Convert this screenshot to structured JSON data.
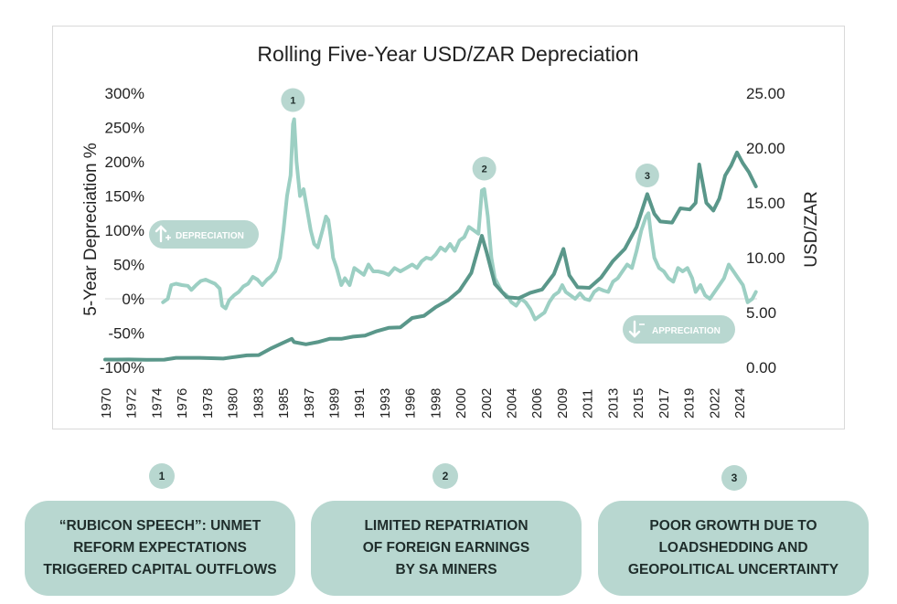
{
  "chart_data": {
    "type": "line",
    "title": "Rolling Five-Year USD/ZAR Depreciation",
    "ylabel": "5-Year Depreciation %",
    "y2label": "USD/ZAR",
    "ylim": [
      -100,
      300
    ],
    "y2lim": [
      0,
      25
    ],
    "y_ticks": [
      "300%",
      "250%",
      "200%",
      "150%",
      "100%",
      "50%",
      "0%",
      "-50%",
      "-100%"
    ],
    "y2_ticks": [
      "25.00",
      "20.00",
      "15.00",
      "10.00",
      "5.00",
      "0.00"
    ],
    "x_ticks": [
      "1970",
      "1972",
      "1974",
      "1976",
      "1978",
      "1980",
      "1983",
      "1985",
      "1987",
      "1989",
      "1991",
      "1993",
      "1996",
      "1998",
      "2000",
      "2002",
      "2004",
      "2006",
      "2009",
      "2011",
      "2013",
      "2015",
      "2017",
      "2019",
      "2022",
      "2024"
    ],
    "series": [
      {
        "name": "5-Year Depreciation %",
        "axis": "left",
        "color": "#9ccfc3",
        "points": [
          [
            1974.9,
            -5
          ],
          [
            1975.3,
            0
          ],
          [
            1975.6,
            20
          ],
          [
            1976.0,
            22
          ],
          [
            1976.5,
            20
          ],
          [
            1977.0,
            19
          ],
          [
            1977.3,
            13
          ],
          [
            1977.7,
            20
          ],
          [
            1978.1,
            26
          ],
          [
            1978.5,
            28
          ],
          [
            1978.9,
            25
          ],
          [
            1979.3,
            22
          ],
          [
            1979.7,
            15
          ],
          [
            1979.9,
            -10
          ],
          [
            1980.2,
            -14
          ],
          [
            1980.5,
            -2
          ],
          [
            1980.9,
            5
          ],
          [
            1981.3,
            10
          ],
          [
            1981.7,
            18
          ],
          [
            1982.1,
            22
          ],
          [
            1982.5,
            32
          ],
          [
            1982.9,
            28
          ],
          [
            1983.3,
            20
          ],
          [
            1983.7,
            28
          ],
          [
            1984.0,
            32
          ],
          [
            1984.4,
            40
          ],
          [
            1984.8,
            60
          ],
          [
            1985.1,
            100
          ],
          [
            1985.4,
            150
          ],
          [
            1985.7,
            180
          ],
          [
            1985.9,
            255
          ],
          [
            1986.0,
            262
          ],
          [
            1986.2,
            200
          ],
          [
            1986.5,
            150
          ],
          [
            1986.8,
            160
          ],
          [
            1987.1,
            130
          ],
          [
            1987.4,
            100
          ],
          [
            1987.7,
            80
          ],
          [
            1988.0,
            75
          ],
          [
            1988.4,
            100
          ],
          [
            1988.7,
            120
          ],
          [
            1988.9,
            115
          ],
          [
            1989.1,
            90
          ],
          [
            1989.3,
            60
          ],
          [
            1989.6,
            45
          ],
          [
            1990.0,
            20
          ],
          [
            1990.3,
            30
          ],
          [
            1990.7,
            20
          ],
          [
            1991.1,
            45
          ],
          [
            1991.5,
            40
          ],
          [
            1991.9,
            35
          ],
          [
            1992.3,
            50
          ],
          [
            1992.7,
            40
          ],
          [
            1993.1,
            40
          ],
          [
            1993.6,
            38
          ],
          [
            1994.0,
            35
          ],
          [
            1994.5,
            45
          ],
          [
            1995.0,
            40
          ],
          [
            1995.5,
            45
          ],
          [
            1996.0,
            50
          ],
          [
            1996.4,
            45
          ],
          [
            1996.8,
            55
          ],
          [
            1997.2,
            60
          ],
          [
            1997.6,
            58
          ],
          [
            1998.0,
            65
          ],
          [
            1998.4,
            75
          ],
          [
            1998.8,
            70
          ],
          [
            1999.2,
            80
          ],
          [
            1999.6,
            70
          ],
          [
            2000.0,
            85
          ],
          [
            2000.4,
            90
          ],
          [
            2000.8,
            105
          ],
          [
            2001.2,
            100
          ],
          [
            2001.6,
            95
          ],
          [
            2001.9,
            158
          ],
          [
            2002.1,
            160
          ],
          [
            2002.4,
            120
          ],
          [
            2002.7,
            60
          ],
          [
            2003.0,
            30
          ],
          [
            2003.3,
            20
          ],
          [
            2003.6,
            10
          ],
          [
            2004.0,
            5
          ],
          [
            2004.4,
            -5
          ],
          [
            2004.8,
            -10
          ],
          [
            2005.2,
            0
          ],
          [
            2005.6,
            -5
          ],
          [
            2006.0,
            -15
          ],
          [
            2006.4,
            -30
          ],
          [
            2006.8,
            -25
          ],
          [
            2007.2,
            -20
          ],
          [
            2007.6,
            -5
          ],
          [
            2008.0,
            5
          ],
          [
            2008.4,
            10
          ],
          [
            2008.7,
            20
          ],
          [
            2009.0,
            10
          ],
          [
            2009.4,
            5
          ],
          [
            2009.8,
            0
          ],
          [
            2010.2,
            8
          ],
          [
            2010.6,
            0
          ],
          [
            2011.0,
            -2
          ],
          [
            2011.4,
            10
          ],
          [
            2011.8,
            15
          ],
          [
            2012.2,
            12
          ],
          [
            2012.6,
            10
          ],
          [
            2013.0,
            25
          ],
          [
            2013.4,
            30
          ],
          [
            2013.8,
            40
          ],
          [
            2014.2,
            50
          ],
          [
            2014.6,
            45
          ],
          [
            2015.0,
            70
          ],
          [
            2015.4,
            100
          ],
          [
            2015.8,
            120
          ],
          [
            2016.0,
            125
          ],
          [
            2016.2,
            95
          ],
          [
            2016.5,
            60
          ],
          [
            2016.9,
            45
          ],
          [
            2017.3,
            40
          ],
          [
            2017.7,
            30
          ],
          [
            2018.1,
            25
          ],
          [
            2018.5,
            45
          ],
          [
            2018.9,
            40
          ],
          [
            2019.3,
            45
          ],
          [
            2019.7,
            30
          ],
          [
            2020.0,
            10
          ],
          [
            2020.4,
            20
          ],
          [
            2020.8,
            5
          ],
          [
            2021.2,
            0
          ],
          [
            2021.6,
            10
          ],
          [
            2022.0,
            20
          ],
          [
            2022.4,
            30
          ],
          [
            2022.8,
            50
          ],
          [
            2023.2,
            40
          ],
          [
            2023.6,
            30
          ],
          [
            2024.0,
            20
          ],
          [
            2024.4,
            -5
          ],
          [
            2024.8,
            0
          ],
          [
            2025.1,
            10
          ]
        ]
      },
      {
        "name": "USD/ZAR",
        "axis": "right",
        "color": "#5a978a",
        "points": [
          [
            1970.0,
            0.71
          ],
          [
            1972.0,
            0.72
          ],
          [
            1973.5,
            0.69
          ],
          [
            1975.0,
            0.7
          ],
          [
            1976.0,
            0.87
          ],
          [
            1978.0,
            0.87
          ],
          [
            1980.0,
            0.8
          ],
          [
            1981.0,
            0.95
          ],
          [
            1982.0,
            1.09
          ],
          [
            1983.0,
            1.12
          ],
          [
            1984.0,
            1.7
          ],
          [
            1985.0,
            2.2
          ],
          [
            1985.8,
            2.6
          ],
          [
            1986.0,
            2.3
          ],
          [
            1987.0,
            2.1
          ],
          [
            1988.0,
            2.3
          ],
          [
            1989.0,
            2.6
          ],
          [
            1990.0,
            2.6
          ],
          [
            1991.0,
            2.8
          ],
          [
            1992.0,
            2.9
          ],
          [
            1993.0,
            3.3
          ],
          [
            1994.0,
            3.6
          ],
          [
            1995.0,
            3.65
          ],
          [
            1996.0,
            4.5
          ],
          [
            1997.0,
            4.7
          ],
          [
            1998.0,
            5.5
          ],
          [
            1999.0,
            6.1
          ],
          [
            2000.0,
            7.0
          ],
          [
            2001.0,
            8.6
          ],
          [
            2001.9,
            12.0
          ],
          [
            2002.3,
            10.5
          ],
          [
            2003.0,
            7.6
          ],
          [
            2004.0,
            6.4
          ],
          [
            2005.0,
            6.3
          ],
          [
            2006.0,
            6.8
          ],
          [
            2007.0,
            7.1
          ],
          [
            2008.0,
            8.5
          ],
          [
            2008.8,
            10.8
          ],
          [
            2009.3,
            8.4
          ],
          [
            2010.0,
            7.3
          ],
          [
            2011.0,
            7.25
          ],
          [
            2012.0,
            8.2
          ],
          [
            2013.0,
            9.7
          ],
          [
            2014.0,
            10.8
          ],
          [
            2015.0,
            12.8
          ],
          [
            2015.9,
            15.8
          ],
          [
            2016.5,
            14.0
          ],
          [
            2017.0,
            13.3
          ],
          [
            2018.0,
            13.2
          ],
          [
            2018.7,
            14.5
          ],
          [
            2019.5,
            14.4
          ],
          [
            2020.0,
            15.0
          ],
          [
            2020.3,
            18.5
          ],
          [
            2020.9,
            15.0
          ],
          [
            2021.5,
            14.3
          ],
          [
            2022.0,
            15.4
          ],
          [
            2022.5,
            17.5
          ],
          [
            2023.0,
            18.4
          ],
          [
            2023.5,
            19.6
          ],
          [
            2024.0,
            18.6
          ],
          [
            2024.5,
            17.8
          ],
          [
            2025.1,
            16.5
          ]
        ]
      }
    ],
    "annotations": [
      {
        "label": "1",
        "x": 1985.9,
        "y": 290
      },
      {
        "label": "2",
        "x": 2002.1,
        "y": 190
      },
      {
        "label": "3",
        "x": 2015.9,
        "y": 180
      }
    ],
    "indicators": {
      "depreciation": {
        "label": "DEPRECIATION",
        "icon": "arrow-up-plus-icon"
      },
      "appreciation": {
        "label": "APPRECIATION",
        "icon": "arrow-down-minus-icon"
      }
    }
  },
  "callouts": [
    {
      "number": "1",
      "text": "“RUBICON SPEECH”: UNMET\nREFORM EXPECTATIONS\nTRIGGERED CAPITAL OUTFLOWS"
    },
    {
      "number": "2",
      "text": "LIMITED REPATRIATION\nOF FOREIGN EARNINGS\nBY SA MINERS"
    },
    {
      "number": "3",
      "text": "POOR GROWTH DUE TO\nLOADSHEDDING AND\nGEOPOLITICAL UNCERTAINTY"
    }
  ],
  "colors": {
    "accent_light": "#9ccfc3",
    "accent_dark": "#5a978a",
    "badge_fill": "#b8d7d0",
    "text": "#1f2d2b"
  }
}
